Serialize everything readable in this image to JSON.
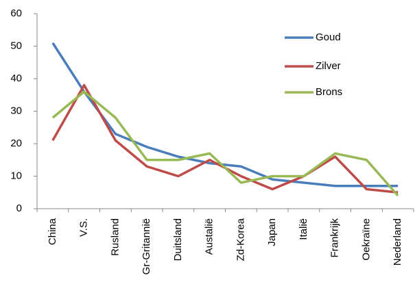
{
  "chart_data": {
    "type": "line",
    "categories": [
      "China",
      "V.S.",
      "Rusland",
      "Gr-Gritannië",
      "Duitsland",
      "Austalië",
      "Zd-Korea",
      "Japan",
      "Italië",
      "Frankrijk",
      "Oekraïne",
      "Nederland"
    ],
    "series": [
      {
        "name": "Goud",
        "color": "#4a7ebb",
        "values": [
          51,
          36,
          23,
          19,
          16,
          14,
          13,
          9,
          8,
          7,
          7,
          7
        ]
      },
      {
        "name": "Zilver",
        "color": "#be4b48",
        "values": [
          21,
          38,
          21,
          13,
          10,
          15,
          10,
          6,
          10,
          16,
          6,
          5
        ]
      },
      {
        "name": "Brons",
        "color": "#98b954",
        "values": [
          28,
          36,
          28,
          15,
          15,
          17,
          8,
          10,
          10,
          17,
          15,
          4
        ]
      }
    ],
    "ylim": [
      0,
      60
    ],
    "yticks": [
      0,
      10,
      20,
      30,
      40,
      50,
      60
    ],
    "legend": "top-right"
  }
}
